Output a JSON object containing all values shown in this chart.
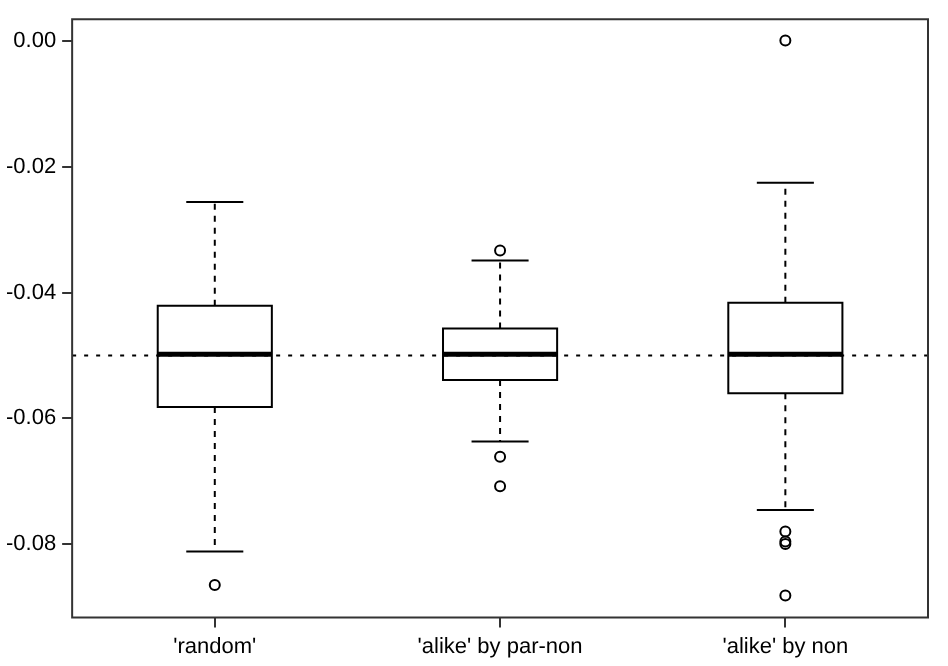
{
  "chart_data": {
    "type": "box",
    "categories": [
      "'random'",
      "'alike' by par-non",
      "'alike' by non"
    ],
    "boxes": [
      {
        "low": -0.0812,
        "q1": -0.0582,
        "median": -0.0498,
        "q3": -0.0421,
        "high": -0.0256,
        "outliers": [
          -0.0865
        ]
      },
      {
        "low": -0.0637,
        "q1": -0.0539,
        "median": -0.0498,
        "q3": -0.0457,
        "high": -0.0349,
        "outliers": [
          -0.0333,
          -0.0661,
          -0.0708
        ]
      },
      {
        "low": -0.0746,
        "q1": -0.056,
        "median": -0.0498,
        "q3": -0.0416,
        "high": -0.0225,
        "outliers": [
          0.0001,
          -0.078,
          -0.0796,
          -0.08,
          -0.0882
        ]
      }
    ],
    "color": "#000000",
    "ylim": [
      -0.0917,
      0.0035
    ],
    "yticks": [
      {
        "value": 0,
        "label": "0.00"
      },
      {
        "value": -0.02,
        "label": "-0.02"
      },
      {
        "value": -0.04,
        "label": "-0.04"
      },
      {
        "value": -0.06,
        "label": "-0.06"
      },
      {
        "value": -0.08,
        "label": "-0.08"
      }
    ],
    "ref_lines": [
      {
        "axis": "y",
        "value": -0.05,
        "color": "#000000",
        "line_style": "dotted"
      }
    ],
    "grid": false,
    "legend": false
  }
}
